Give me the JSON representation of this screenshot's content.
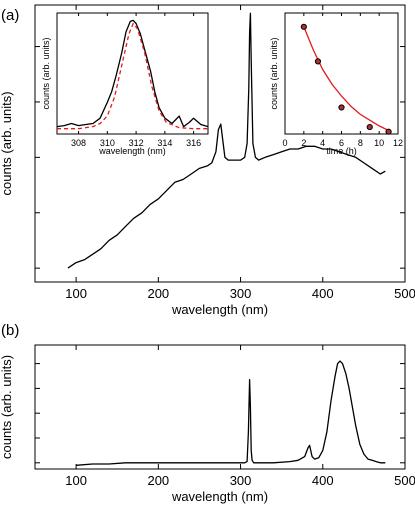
{
  "panels": [
    {
      "label": "(a)"
    },
    {
      "label": "(b)"
    }
  ],
  "chart_data": [
    {
      "panel": "a",
      "type": "line",
      "xlabel": "wavelength (nm)",
      "ylabel": "counts (arb. units)",
      "xlim": [
        50,
        500
      ],
      "xticks": [
        100,
        200,
        300,
        400,
        500
      ],
      "ylim": [
        0,
        1
      ],
      "yticks_unlabeled": [
        0.05,
        0.25,
        0.45,
        0.65,
        0.85
      ],
      "series": [
        {
          "color": "#000000",
          "x": [
            90,
            100,
            110,
            120,
            130,
            140,
            150,
            160,
            170,
            180,
            190,
            200,
            210,
            220,
            230,
            240,
            250,
            260,
            265,
            270,
            273,
            276,
            278,
            281,
            285,
            290,
            295,
            300,
            305,
            308,
            310,
            311,
            312,
            313,
            315,
            318,
            322,
            330,
            340,
            350,
            360,
            370,
            380,
            390,
            400,
            410,
            420,
            430,
            440,
            450,
            460,
            470,
            476
          ],
          "y": [
            0.05,
            0.07,
            0.08,
            0.1,
            0.12,
            0.15,
            0.17,
            0.2,
            0.23,
            0.25,
            0.28,
            0.3,
            0.33,
            0.36,
            0.37,
            0.39,
            0.41,
            0.42,
            0.43,
            0.47,
            0.55,
            0.57,
            0.52,
            0.45,
            0.44,
            0.44,
            0.44,
            0.44,
            0.45,
            0.5,
            0.7,
            0.9,
            0.97,
            0.8,
            0.5,
            0.45,
            0.44,
            0.45,
            0.46,
            0.47,
            0.48,
            0.48,
            0.49,
            0.49,
            0.48,
            0.48,
            0.47,
            0.46,
            0.45,
            0.43,
            0.41,
            0.39,
            0.4
          ]
        }
      ],
      "insets": [
        {
          "type": "line",
          "xlabel": "wavelength (nm)",
          "ylabel": "counts (arb. units)",
          "xlim": [
            306.5,
            317
          ],
          "xticks": [
            308,
            310,
            312,
            314,
            316
          ],
          "ylim": [
            -0.05,
            1.1
          ],
          "series": [
            {
              "color": "#000000",
              "style": "solid",
              "x": [
                306.5,
                307,
                307.5,
                308,
                308.5,
                309,
                309.5,
                310,
                310.3,
                310.6,
                311,
                311.3,
                311.6,
                311.8,
                312,
                312.3,
                312.6,
                313,
                313.3,
                313.6,
                314,
                314.5,
                315,
                315.3,
                315.7,
                316,
                316.5,
                317
              ],
              "y": [
                0.02,
                0.03,
                0.05,
                0.03,
                0.04,
                0.05,
                0.1,
                0.25,
                0.35,
                0.5,
                0.72,
                0.92,
                1.02,
                1.03,
                1.0,
                0.9,
                0.75,
                0.55,
                0.35,
                0.2,
                0.1,
                0.05,
                0.12,
                0.02,
                0.06,
                0.1,
                0.04,
                0.02
              ]
            },
            {
              "color": "#e41a1c",
              "style": "dashed",
              "x": [
                306.5,
                308,
                309,
                309.5,
                310,
                310.5,
                311,
                311.5,
                311.8,
                312.1,
                312.6,
                313.1,
                313.6,
                314.1,
                315,
                316,
                317
              ],
              "y": [
                0.0,
                0.0,
                0.02,
                0.05,
                0.12,
                0.3,
                0.6,
                0.9,
                1.0,
                0.95,
                0.72,
                0.4,
                0.17,
                0.06,
                0.01,
                0.0,
                0.0
              ]
            }
          ]
        },
        {
          "type": "scatter",
          "xlabel": "time (h)",
          "ylabel": "counts (arb. units)",
          "xlim": [
            0,
            12
          ],
          "xticks": [
            0,
            2,
            4,
            6,
            8,
            10,
            12
          ],
          "ylim": [
            0,
            1.05
          ],
          "points": {
            "x": [
              2,
              3.5,
              6,
              9,
              11
            ],
            "y": [
              0.93,
              0.63,
              0.23,
              0.06,
              0.02
            ],
            "color": "#000000",
            "fill": "#b03030"
          },
          "fit": {
            "color": "#e41a1c",
            "x": [
              2,
              3,
              4,
              5,
              6,
              7,
              8,
              9,
              10,
              11
            ],
            "y": [
              0.93,
              0.73,
              0.56,
              0.43,
              0.33,
              0.24,
              0.17,
              0.12,
              0.07,
              0.03
            ]
          }
        }
      ]
    },
    {
      "panel": "b",
      "type": "line",
      "xlabel": "wavelength (nm)",
      "ylabel": "counts (arb. units)",
      "xlim": [
        50,
        500
      ],
      "xticks": [
        100,
        200,
        300,
        400,
        500
      ],
      "ylim": [
        0,
        1
      ],
      "yticks_unlabeled": [
        0.05,
        0.25,
        0.45,
        0.65,
        0.85
      ],
      "series": [
        {
          "color": "#000000",
          "x": [
            100,
            120,
            140,
            160,
            180,
            200,
            220,
            240,
            260,
            280,
            300,
            305,
            308,
            309.5,
            311,
            312,
            313,
            314,
            316,
            320,
            340,
            360,
            370,
            378,
            382,
            384,
            387,
            390,
            395,
            400,
            405,
            410,
            415,
            418,
            421,
            424,
            428,
            432,
            436,
            440,
            445,
            450,
            455,
            460,
            465,
            470,
            476
          ],
          "y": [
            0.03,
            0.04,
            0.04,
            0.05,
            0.05,
            0.05,
            0.05,
            0.05,
            0.05,
            0.05,
            0.05,
            0.05,
            0.06,
            0.3,
            0.72,
            0.5,
            0.15,
            0.07,
            0.05,
            0.05,
            0.05,
            0.06,
            0.07,
            0.1,
            0.17,
            0.19,
            0.1,
            0.08,
            0.09,
            0.15,
            0.3,
            0.55,
            0.75,
            0.85,
            0.87,
            0.85,
            0.77,
            0.65,
            0.5,
            0.35,
            0.2,
            0.12,
            0.08,
            0.07,
            0.06,
            0.05,
            0.05
          ]
        }
      ]
    }
  ]
}
